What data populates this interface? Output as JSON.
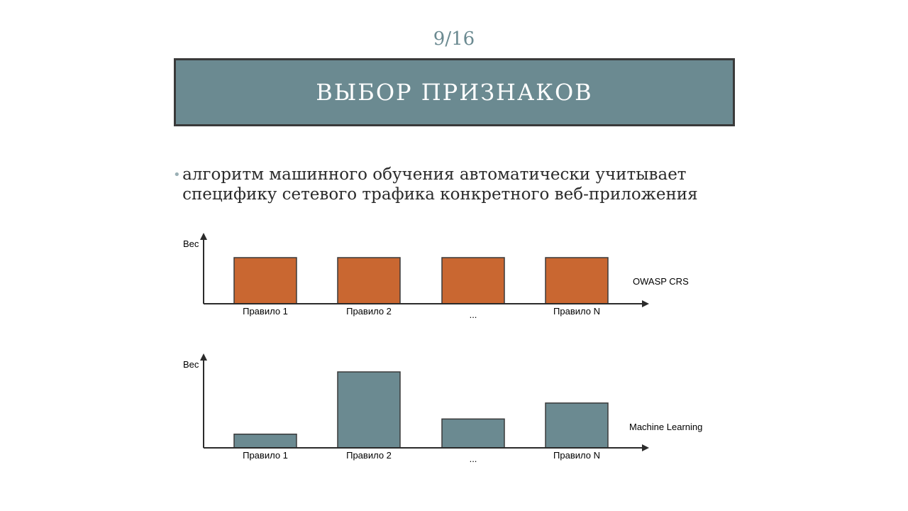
{
  "slide": {
    "page_number": "9/16",
    "title": "ВЫБОР ПРИЗНАКОВ",
    "bullet": "алгоритм машинного обучения автоматически учитывает специфику сетевого трафика конкретного веб-приложения"
  },
  "colors": {
    "accent": "#6b8a91",
    "owasp_bar": "#c96731",
    "ml_bar": "#6b8a91",
    "axis": "#2b2b2b"
  },
  "chart_data": [
    {
      "type": "bar",
      "ylabel": "Вес",
      "series_label": "OWASP CRS",
      "categories": [
        "Правило 1",
        "Правило 2",
        "...",
        "Правило N"
      ],
      "values": [
        1,
        1,
        1,
        1
      ],
      "ylim": [
        0,
        1.2
      ]
    },
    {
      "type": "bar",
      "ylabel": "Вес",
      "series_label": "Machine Learning",
      "categories": [
        "Правило 1",
        "Правило 2",
        "...",
        "Правило N"
      ],
      "values": [
        0.18,
        1,
        0.38,
        0.59
      ],
      "ylim": [
        0,
        1.2
      ]
    }
  ]
}
